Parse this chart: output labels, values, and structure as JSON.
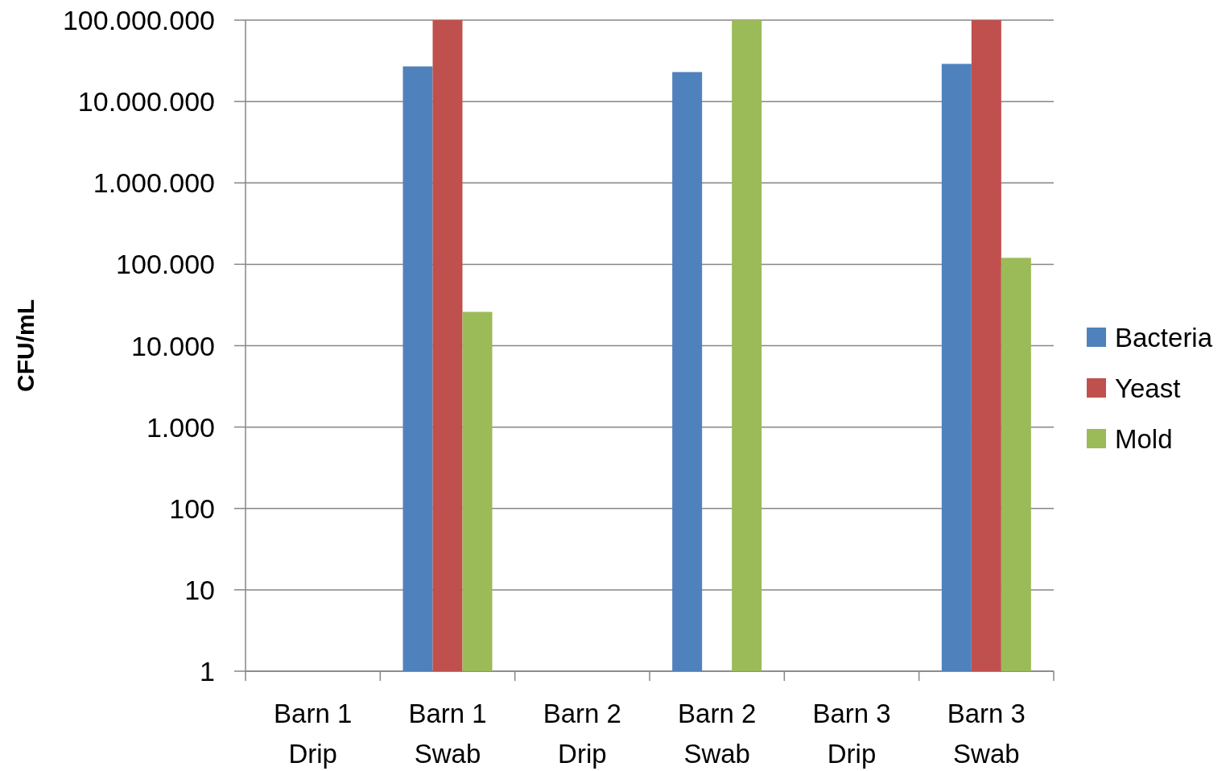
{
  "chart_data": {
    "type": "bar",
    "ylabel": "CFU/mL",
    "log": true,
    "grid": "y",
    "legend": "right",
    "categories": [
      "Barn 1 Drip",
      "Barn 1 Swab",
      "Barn 2 Drip",
      "Barn 2 Swab",
      "Barn 3 Drip",
      "Barn 3 Swab"
    ],
    "ylim": [
      1,
      100000000
    ],
    "yticks": [
      1,
      10,
      100,
      {
        "value": 1000,
        "label": "1.000"
      },
      {
        "value": 10000,
        "label": "10.000"
      },
      {
        "value": 100000,
        "label": "100.000"
      },
      {
        "value": 1000000,
        "label": "1.000.000"
      },
      {
        "value": 10000000,
        "label": "10.000.000"
      },
      {
        "value": 100000000,
        "label": "100.000.000"
      }
    ],
    "series": [
      {
        "name": "Bacteria",
        "color": "#4f81bd",
        "values": [
          null,
          27000000,
          null,
          23000000,
          null,
          29000000
        ]
      },
      {
        "name": "Yeast",
        "color": "#c0504d",
        "values": [
          null,
          100000000,
          null,
          null,
          null,
          100000000
        ]
      },
      {
        "name": "Mold",
        "color": "#9bbb59",
        "values": [
          null,
          26000,
          null,
          100000000,
          null,
          120000
        ]
      }
    ]
  }
}
